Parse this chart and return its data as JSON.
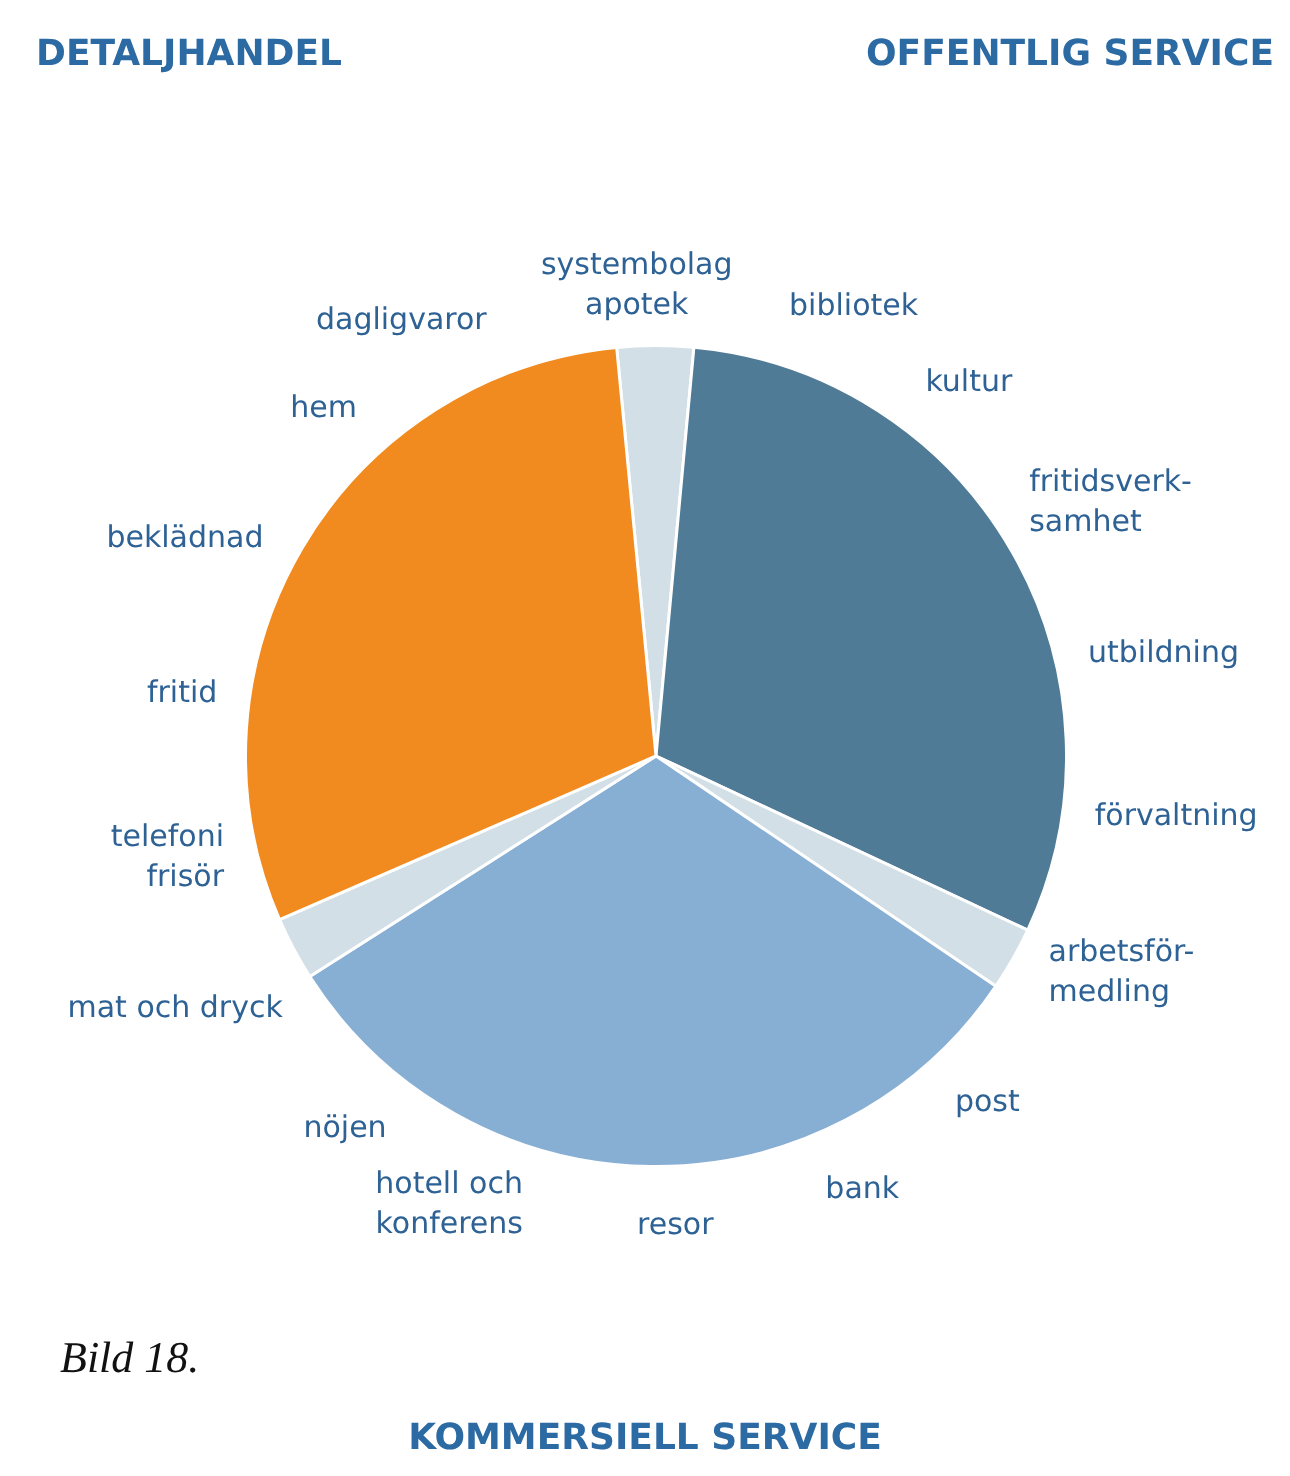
{
  "chart_data": {
    "type": "pie",
    "categories": [
      null,
      "OFFENTLIG SERVICE",
      null,
      "KOMMERSIELL SERVICE",
      null,
      "DETALJHANDEL"
    ],
    "values": [
      3,
      30.5,
      2.5,
      31.5,
      2.5,
      30
    ],
    "colors": [
      "#d3dfe6",
      "#4f7b97",
      "#d3dfe6",
      "#87aed3",
      "#d3dfe6",
      "#f18a1f"
    ],
    "annotations": [
      "systembolag\napotek",
      "bibliotek",
      "kultur",
      "fritidsverk-\nsamhet",
      "utbildning",
      "förvaltning",
      "arbetsför-\nmedling",
      "post",
      "bank",
      "resor",
      "hotell och\nkonferens",
      "nöjen",
      "mat och dryck",
      "telefoni\nfrisör",
      "fritid",
      "beklädnad",
      "hem",
      "dagligvaror",
      "Bild 18."
    ]
  }
}
